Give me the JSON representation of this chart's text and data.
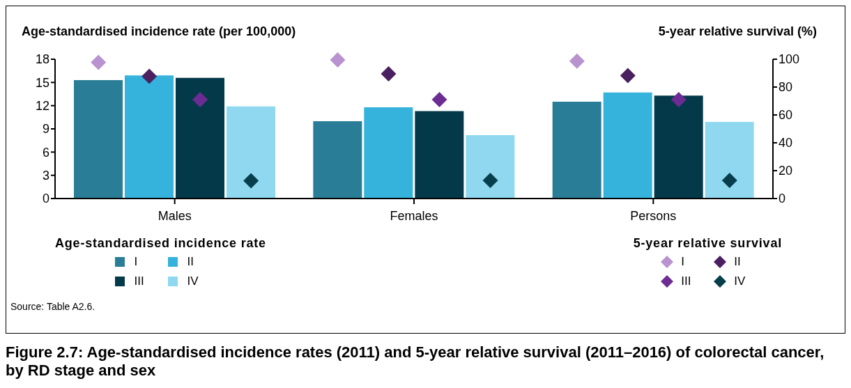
{
  "chart_data": {
    "type": "bar",
    "title": "Figure 2.7: Age-standardised incidence rates (2011) and 5-year relative survival (2011–2016) of colorectal cancer, by RD stage and sex",
    "ylabel": "Age-standardised incidence rate (per 100,000)",
    "y2label": "5-year relative survival (%)",
    "legend_title": [
      "Age-standardised incidence rate",
      "5-year relative survival"
    ],
    "annotations": [
      "Source: Table A2.6."
    ],
    "categories": [
      "Males",
      "Females",
      "Persons"
    ],
    "series": [
      {
        "name": "I",
        "color": "#2a7d96",
        "values": [
          15.3,
          10.0,
          12.5
        ]
      },
      {
        "name": "II",
        "color": "#35b3dc",
        "values": [
          15.9,
          11.8,
          13.7
        ]
      },
      {
        "name": "III",
        "color": "#04394a",
        "values": [
          15.6,
          11.3,
          13.3
        ]
      },
      {
        "name": "IV",
        "color": "#8fd8f0",
        "values": [
          11.9,
          8.2,
          9.9
        ]
      },
      {
        "name": "I",
        "type": "scatter",
        "axis": "y2",
        "color": "#b893cf",
        "values": [
          97.7,
          99.5,
          98.6
        ]
      },
      {
        "name": "II",
        "type": "scatter",
        "axis": "y2",
        "color": "#4a2060",
        "values": [
          87.7,
          89.5,
          88.3
        ]
      },
      {
        "name": "III",
        "type": "scatter",
        "axis": "y2",
        "color": "#6c2c93",
        "values": [
          71,
          71,
          71
        ]
      },
      {
        "name": "IV",
        "type": "scatter",
        "axis": "y2",
        "color": "#073e4c",
        "values": [
          12.8,
          13,
          13
        ]
      }
    ],
    "ylim": [
      0,
      18
    ],
    "yticks": [
      0,
      3,
      6,
      9,
      12,
      15,
      18
    ],
    "y2lim": [
      0,
      100
    ],
    "y2ticks": [
      0,
      20,
      40,
      60,
      80,
      100
    ],
    "marker": "diamond",
    "grid": false,
    "legend": "bottom"
  }
}
